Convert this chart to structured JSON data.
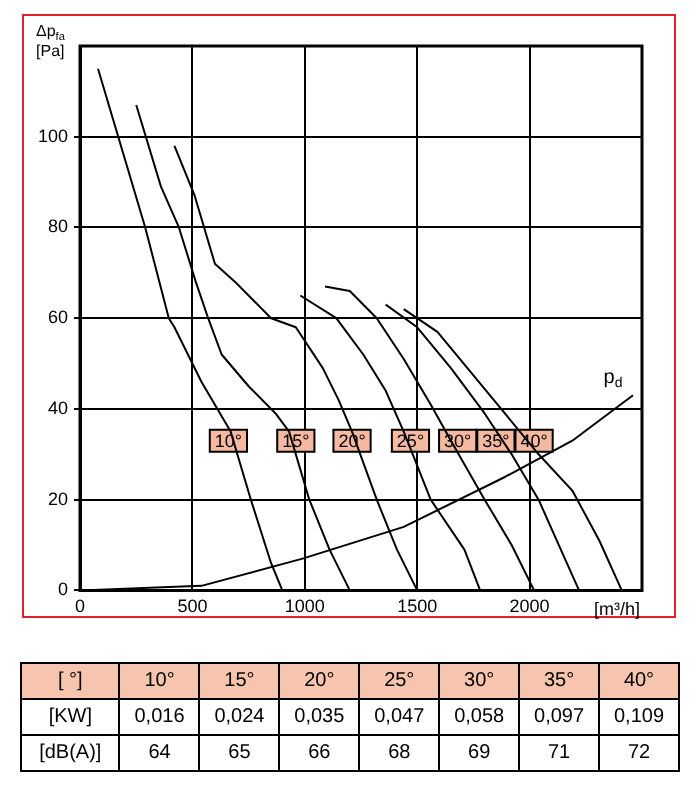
{
  "chart_data": [
    {
      "type": "line",
      "xlabel": "[m³/h]",
      "ylabel": "Δp$_{fa}$ [Pa]",
      "xlim": [
        0,
        2500
      ],
      "xticks": [
        0,
        500,
        1000,
        1500,
        2000
      ],
      "ylim": [
        0,
        120
      ],
      "yticks": [
        0,
        20,
        40,
        60,
        80,
        100
      ],
      "grid": true,
      "marker": "none",
      "line_style": "solid",
      "legend": false,
      "series": [
        {
          "color": "#000000",
          "x": [
            80,
            170,
            290,
            395,
            420,
            540,
            670,
            760,
            850,
            900
          ],
          "values": [
            115,
            100,
            80,
            60,
            58,
            46,
            35,
            20,
            6,
            0
          ]
        },
        {
          "color": "#000000",
          "x": [
            250,
            360,
            440,
            515,
            570,
            630,
            750,
            870,
            930,
            1020,
            1110,
            1200
          ],
          "values": [
            107,
            89,
            80,
            68,
            60,
            52,
            45,
            39,
            35,
            20,
            9,
            0
          ]
        },
        {
          "color": "#000000",
          "x": [
            420,
            510,
            600,
            690,
            850,
            960,
            1080,
            1150,
            1210,
            1320,
            1410,
            1500
          ],
          "values": [
            98,
            87,
            72,
            68,
            60,
            58,
            49,
            42,
            35,
            20,
            9,
            0
          ]
        },
        {
          "color": "#000000",
          "x": [
            980,
            1140,
            1260,
            1360,
            1440,
            1560,
            1710,
            1780
          ],
          "values": [
            65,
            60,
            52,
            44,
            35,
            20,
            9,
            0
          ]
        },
        {
          "color": "#000000",
          "x": [
            1090,
            1200,
            1320,
            1440,
            1560,
            1650,
            1800,
            1920,
            2020
          ],
          "values": [
            67,
            66,
            60,
            51,
            41,
            33,
            20,
            10,
            0
          ]
        },
        {
          "color": "#000000",
          "x": [
            1360,
            1500,
            1650,
            1800,
            1920,
            2040,
            2130,
            2220
          ],
          "values": [
            63,
            58,
            49,
            39,
            30,
            20,
            10,
            0
          ]
        },
        {
          "color": "#000000",
          "x": [
            1440,
            1590,
            1740,
            1890,
            2040,
            2190,
            2310,
            2410
          ],
          "values": [
            62,
            57,
            48,
            39,
            30,
            22,
            11,
            0
          ]
        },
        {
          "name": "p$_{d}$",
          "color": "#000000",
          "x": [
            0,
            540,
            990,
            1440,
            1890,
            2190,
            2460
          ],
          "values": [
            0,
            1,
            7,
            14,
            25,
            33,
            43
          ]
        }
      ],
      "annotations": [
        {
          "text": "10°",
          "x": 660,
          "y": 33
        },
        {
          "text": "15°",
          "x": 960,
          "y": 33
        },
        {
          "text": "20°",
          "x": 1210,
          "y": 33
        },
        {
          "text": "25°",
          "x": 1470,
          "y": 33
        },
        {
          "text": "30°",
          "x": 1680,
          "y": 33
        },
        {
          "text": "35°",
          "x": 1850,
          "y": 33
        },
        {
          "text": "40°",
          "x": 2020,
          "y": 33
        }
      ]
    },
    {
      "type": "heatmap",
      "xlabel": "[ °]",
      "categories": [
        "10°",
        "15°",
        "20°",
        "25°",
        "30°",
        "35°",
        "40°"
      ],
      "y_categories": [
        "[KW]",
        "[dB(A)]"
      ],
      "cells": [
        [
          0.016,
          0.024,
          0.035,
          0.047,
          0.058,
          0.097,
          0.109
        ],
        [
          64,
          65,
          66,
          68,
          69,
          71,
          72
        ]
      ],
      "cell_labels": [
        [
          "0,016",
          "0,024",
          "0,035",
          "0,047",
          "0,058",
          "0,097",
          "0,109"
        ],
        [
          "64",
          "65",
          "66",
          "68",
          "69",
          "71",
          "72"
        ]
      ]
    }
  ]
}
